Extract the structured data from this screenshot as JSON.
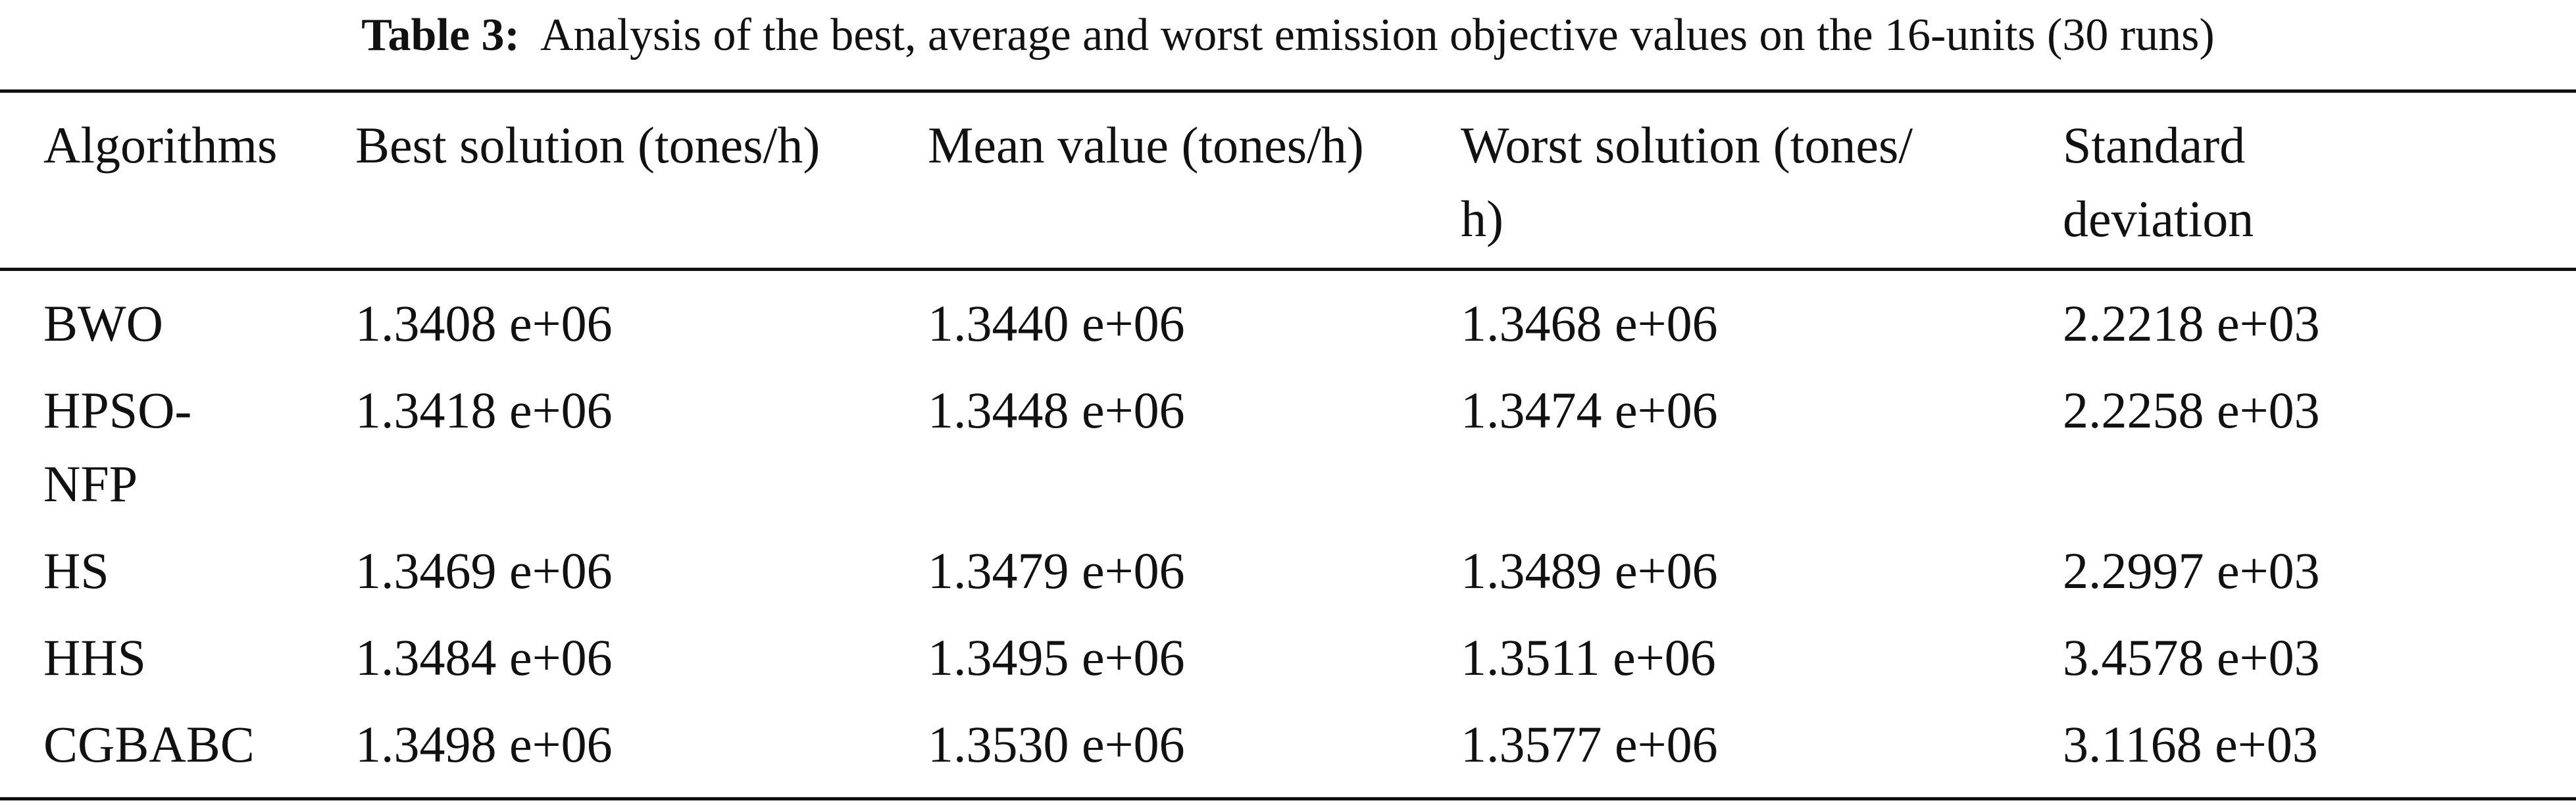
{
  "caption": {
    "label": "Table 3:",
    "text": "Analysis of the best, average and worst emission objective values on the 16-units (30 runs)"
  },
  "table": {
    "headers": [
      "Algorithms",
      "Best solution (tones/h)",
      "Mean value (tones/h)",
      "Worst solution (tones/\nh)",
      "Standard\ndeviation"
    ],
    "rows": [
      [
        "BWO",
        "1.3408 e+06",
        "1.3440 e+06",
        "1.3468 e+06",
        "2.2218 e+03"
      ],
      [
        "HPSO-\nNFP",
        "1.3418 e+06",
        "1.3448 e+06",
        "1.3474 e+06",
        "2.2258 e+03"
      ],
      [
        "HS",
        "1.3469 e+06",
        "1.3479 e+06",
        "1.3489 e+06",
        "2.2997 e+03"
      ],
      [
        "HHS",
        "1.3484 e+06",
        "1.3495 e+06",
        "1.3511 e+06",
        "3.4578 e+03"
      ],
      [
        "CGBABC",
        "1.3498 e+06",
        "1.3530 e+06",
        "1.3577 e+06",
        "3.1168 e+03"
      ]
    ]
  }
}
